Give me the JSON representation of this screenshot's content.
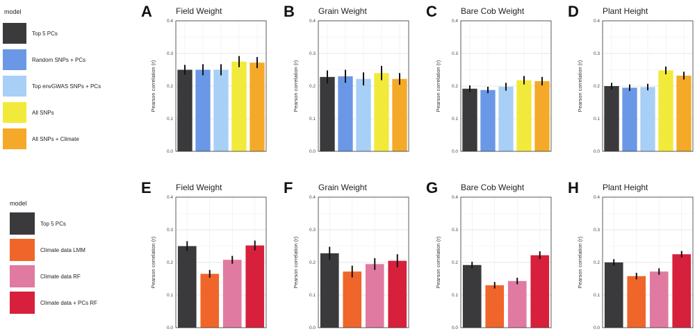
{
  "legends": [
    {
      "title": "model",
      "items": [
        {
          "label": "Top 5 PCs",
          "color": "#3a3a3c"
        },
        {
          "label": "Random SNPs + PCs",
          "color": "#6a98e6"
        },
        {
          "label": "Top envGWAS SNPs + PCs",
          "color": "#a8cff5"
        },
        {
          "label": "All SNPs",
          "color": "#f2ea3a"
        },
        {
          "label": "All SNPs + Climate",
          "color": "#f4aa28"
        }
      ]
    },
    {
      "title": "model",
      "items": [
        {
          "label": "Top 5 PCs",
          "color": "#3a3a3c"
        },
        {
          "label": "Climate data LMM",
          "color": "#f0662a"
        },
        {
          "label": "Climate data RF",
          "color": "#e07aa0"
        },
        {
          "label": "Climate data + PCs RF",
          "color": "#d7203c"
        }
      ]
    }
  ],
  "chart_data": [
    {
      "type": "bar",
      "panel": "A",
      "title": "Field Weight",
      "ylabel": "Pearson correlation (r)",
      "ylim": [
        0,
        0.4
      ],
      "yticks": [
        "0.0",
        "0.1",
        "0.2",
        "0.3",
        "0.4"
      ],
      "legend": 0,
      "values": [
        0.25,
        0.25,
        0.25,
        0.275,
        0.272
      ],
      "errors": [
        0.015,
        0.017,
        0.017,
        0.017,
        0.017
      ]
    },
    {
      "type": "bar",
      "panel": "B",
      "title": "Grain Weight",
      "ylabel": "Pearson correlation (r)",
      "ylim": [
        0,
        0.4
      ],
      "yticks": [
        "0.0",
        "0.1",
        "0.2",
        "0.3",
        "0.4"
      ],
      "legend": 0,
      "values": [
        0.228,
        0.23,
        0.222,
        0.24,
        0.222
      ],
      "errors": [
        0.02,
        0.02,
        0.02,
        0.022,
        0.018
      ]
    },
    {
      "type": "bar",
      "panel": "C",
      "title": "Bare Cob Weight",
      "ylabel": "Pearson correlation (r)",
      "ylim": [
        0,
        0.4
      ],
      "yticks": [
        "0.0",
        "0.1",
        "0.2",
        "0.3",
        "0.4"
      ],
      "legend": 0,
      "values": [
        0.192,
        0.188,
        0.198,
        0.218,
        0.215
      ],
      "errors": [
        0.01,
        0.01,
        0.012,
        0.013,
        0.013
      ]
    },
    {
      "type": "bar",
      "panel": "D",
      "title": "Plant Height",
      "ylabel": "Pearson correlation (r)",
      "ylim": [
        0,
        0.4
      ],
      "yticks": [
        "0.0",
        "0.1",
        "0.2",
        "0.3",
        "0.4"
      ],
      "legend": 0,
      "values": [
        0.2,
        0.195,
        0.197,
        0.248,
        0.232
      ],
      "errors": [
        0.01,
        0.01,
        0.01,
        0.012,
        0.012
      ]
    },
    {
      "type": "bar",
      "panel": "E",
      "title": "Field Weight",
      "ylabel": "Pearson correlation (r)",
      "ylim": [
        0,
        0.4
      ],
      "yticks": [
        "0.0",
        "0.1",
        "0.2",
        "0.3",
        "0.4"
      ],
      "legend": 1,
      "values": [
        0.25,
        0.165,
        0.208,
        0.252
      ],
      "errors": [
        0.015,
        0.012,
        0.012,
        0.015
      ]
    },
    {
      "type": "bar",
      "panel": "F",
      "title": "Grain Weight",
      "ylabel": "Pearson correlation (r)",
      "ylim": [
        0,
        0.4
      ],
      "yticks": [
        "0.0",
        "0.1",
        "0.2",
        "0.3",
        "0.4"
      ],
      "legend": 1,
      "values": [
        0.228,
        0.172,
        0.195,
        0.205
      ],
      "errors": [
        0.02,
        0.018,
        0.018,
        0.02
      ]
    },
    {
      "type": "bar",
      "panel": "G",
      "title": "Bare Cob Weight",
      "ylabel": "Pearson correlation (r)",
      "ylim": [
        0,
        0.4
      ],
      "yticks": [
        "0.0",
        "0.1",
        "0.2",
        "0.3",
        "0.4"
      ],
      "legend": 1,
      "values": [
        0.192,
        0.13,
        0.143,
        0.222
      ],
      "errors": [
        0.01,
        0.01,
        0.01,
        0.012
      ]
    },
    {
      "type": "bar",
      "panel": "H",
      "title": "Plant Height",
      "ylabel": "Pearson correlation (r)",
      "ylim": [
        0,
        0.4
      ],
      "yticks": [
        "0.0",
        "0.1",
        "0.2",
        "0.3",
        "0.4"
      ],
      "legend": 1,
      "values": [
        0.2,
        0.158,
        0.172,
        0.225
      ],
      "errors": [
        0.01,
        0.01,
        0.01,
        0.01
      ]
    }
  ]
}
